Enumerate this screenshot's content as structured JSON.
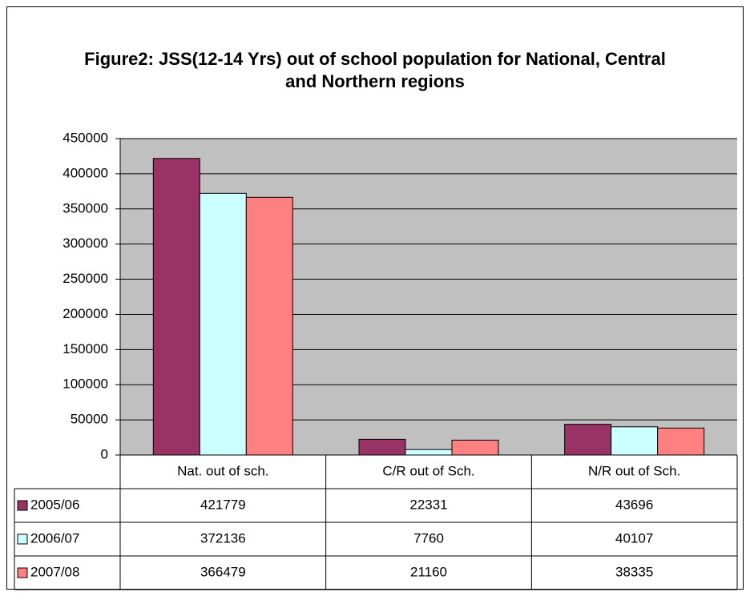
{
  "chart_data": {
    "type": "bar",
    "title": "Figure2: JSS(12-14 Yrs) out of school population for National, Central and Northern regions",
    "categories": [
      "Nat. out of sch.",
      "C/R out of Sch.",
      "N/R out of Sch."
    ],
    "series": [
      {
        "name": "2005/06",
        "color": "#993366",
        "values": [
          421779,
          22331,
          43696
        ]
      },
      {
        "name": "2006/07",
        "color": "#ccffff",
        "values": [
          372136,
          7760,
          40107
        ]
      },
      {
        "name": "2007/08",
        "color": "#ff8080",
        "values": [
          366479,
          21160,
          38335
        ]
      }
    ],
    "ylim": [
      0,
      450000
    ],
    "yticks": [
      0,
      50000,
      100000,
      150000,
      200000,
      250000,
      300000,
      350000,
      400000,
      450000
    ],
    "grid": true
  }
}
